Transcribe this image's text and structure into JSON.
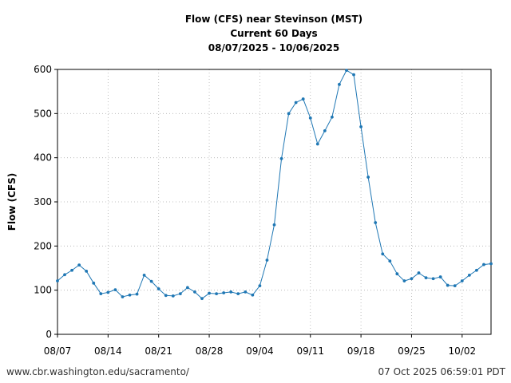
{
  "chart_data": {
    "type": "line",
    "title": "Flow (CFS) near Stevinson (MST)",
    "subtitle": "Current 60 Days",
    "date_range": "08/07/2025 - 10/06/2025",
    "xlabel": "",
    "ylabel": "Flow (CFS)",
    "ylim": [
      0,
      600
    ],
    "yticks": [
      0,
      100,
      200,
      300,
      400,
      500,
      600
    ],
    "xlim_day_index": [
      0,
      60
    ],
    "xticks": [
      {
        "label": "08/07",
        "day": 0
      },
      {
        "label": "08/14",
        "day": 7
      },
      {
        "label": "08/21",
        "day": 14
      },
      {
        "label": "08/28",
        "day": 21
      },
      {
        "label": "09/04",
        "day": 28
      },
      {
        "label": "09/11",
        "day": 35
      },
      {
        "label": "09/18",
        "day": 42
      },
      {
        "label": "09/25",
        "day": 49
      },
      {
        "label": "10/02",
        "day": 56
      }
    ],
    "grid": true,
    "series": [
      {
        "color": "#1f77b4",
        "values": [
          121,
          135,
          145,
          157,
          143,
          116,
          92,
          95,
          101,
          85,
          89,
          91,
          134,
          120,
          103,
          88,
          87,
          92,
          106,
          96,
          81,
          93,
          92,
          94,
          96,
          92,
          96,
          89,
          110,
          168,
          248,
          398,
          500,
          525,
          533,
          490,
          431,
          461,
          492,
          566,
          598,
          588,
          470,
          356,
          253,
          182,
          166,
          137,
          121,
          126,
          139,
          128,
          126,
          130,
          111,
          110,
          121,
          134,
          145,
          158,
          160
        ]
      }
    ]
  },
  "footer": {
    "source": "www.cbr.washington.edu/sacramento/",
    "timestamp": "07 Oct 2025 06:59:01 PDT"
  }
}
